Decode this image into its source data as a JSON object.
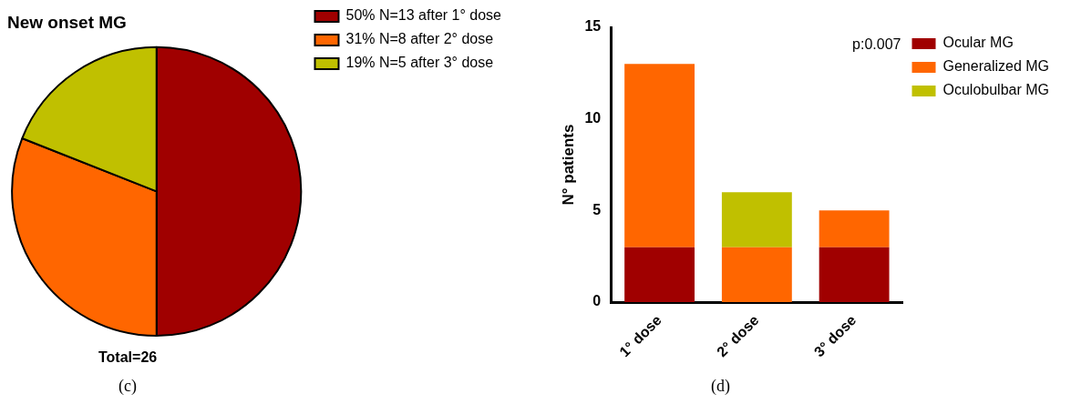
{
  "chart_data": [
    {
      "type": "pie",
      "title": "New onset MG",
      "categories": [
        "50% N=13 after 1° dose",
        "31% N=8 after 2° dose",
        "19% N=5 after 3° dose"
      ],
      "values": [
        50,
        31,
        19
      ],
      "colors": [
        "#a00000",
        "#ff6600",
        "#c0c000"
      ],
      "legend": "right",
      "annotations": [
        "Total=26",
        "(c)"
      ]
    },
    {
      "type": "bar",
      "stacked": true,
      "ylabel": "N° patients",
      "categories": [
        "1° dose",
        "2° dose",
        "3° dose"
      ],
      "series": [
        {
          "name": "Ocular MG",
          "color": "#a00000",
          "values": [
            3,
            0,
            3
          ]
        },
        {
          "name": "Generalized MG",
          "color": "#ff6600",
          "values": [
            10,
            3,
            2
          ]
        },
        {
          "name": "Oculobulbar MG",
          "color": "#c0c000",
          "values": [
            0,
            3,
            0
          ]
        }
      ],
      "ylim": [
        0,
        15
      ],
      "yticks": [
        0,
        5,
        10,
        15
      ],
      "grid": false,
      "legend": "right",
      "annotations": [
        "p:0.007",
        "(d)"
      ]
    }
  ]
}
